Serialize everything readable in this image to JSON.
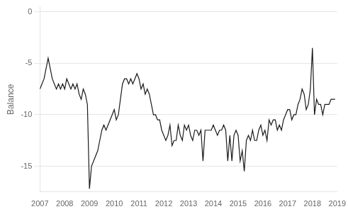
{
  "chart_data": {
    "type": "line",
    "ylabel": "Balance",
    "color": "#1a1a1a",
    "grid": "y",
    "xlim": [
      2007.0,
      2019.0
    ],
    "ylim": [
      -17.5,
      0.5
    ],
    "xticks": [
      2007,
      2008,
      2009,
      2010,
      2011,
      2012,
      2013,
      2014,
      2015,
      2016,
      2017,
      2018,
      2019
    ],
    "yticks": [
      0,
      -5,
      -10,
      -15
    ],
    "x": [
      2007.0,
      2007.083,
      2007.167,
      2007.25,
      2007.333,
      2007.417,
      2007.5,
      2007.583,
      2007.667,
      2007.75,
      2007.833,
      2007.917,
      2008.0,
      2008.083,
      2008.167,
      2008.25,
      2008.333,
      2008.417,
      2008.5,
      2008.583,
      2008.667,
      2008.75,
      2008.833,
      2008.917,
      2009.0,
      2009.083,
      2009.167,
      2009.25,
      2009.333,
      2009.417,
      2009.5,
      2009.583,
      2009.667,
      2009.75,
      2009.833,
      2009.917,
      2010.0,
      2010.083,
      2010.167,
      2010.25,
      2010.333,
      2010.417,
      2010.5,
      2010.583,
      2010.667,
      2010.75,
      2010.833,
      2010.917,
      2011.0,
      2011.083,
      2011.167,
      2011.25,
      2011.333,
      2011.417,
      2011.5,
      2011.583,
      2011.667,
      2011.75,
      2011.833,
      2011.917,
      2012.0,
      2012.083,
      2012.167,
      2012.25,
      2012.333,
      2012.417,
      2012.5,
      2012.583,
      2012.667,
      2012.75,
      2012.833,
      2012.917,
      2013.0,
      2013.083,
      2013.167,
      2013.25,
      2013.333,
      2013.417,
      2013.5,
      2013.583,
      2013.667,
      2013.75,
      2013.833,
      2013.917,
      2014.0,
      2014.083,
      2014.167,
      2014.25,
      2014.333,
      2014.417,
      2014.5,
      2014.583,
      2014.667,
      2014.75,
      2014.833,
      2014.917,
      2015.0,
      2015.083,
      2015.167,
      2015.25,
      2015.333,
      2015.417,
      2015.5,
      2015.583,
      2015.667,
      2015.75,
      2015.833,
      2015.917,
      2016.0,
      2016.083,
      2016.167,
      2016.25,
      2016.333,
      2016.417,
      2016.5,
      2016.583,
      2016.667,
      2016.75,
      2016.833,
      2016.917,
      2017.0,
      2017.083,
      2017.167,
      2017.25,
      2017.333,
      2017.417,
      2017.5,
      2017.583,
      2017.667,
      2017.75,
      2017.833,
      2017.917,
      2018.0,
      2018.083,
      2018.167,
      2018.25,
      2018.333,
      2018.417,
      2018.5,
      2018.583,
      2018.667,
      2018.75,
      2018.833,
      2018.917
    ],
    "values": [
      -7.5,
      -7.0,
      -6.5,
      -5.5,
      -4.5,
      -5.5,
      -6.5,
      -7.0,
      -7.5,
      -7.0,
      -7.5,
      -7.0,
      -7.5,
      -6.5,
      -7.0,
      -7.5,
      -7.0,
      -7.5,
      -7.0,
      -8.0,
      -8.5,
      -7.5,
      -8.0,
      -9.0,
      -17.2,
      -15.0,
      -14.5,
      -14.0,
      -13.5,
      -12.5,
      -11.5,
      -11.0,
      -11.5,
      -11.0,
      -10.5,
      -10.0,
      -9.5,
      -10.5,
      -10.0,
      -8.5,
      -7.0,
      -6.5,
      -6.5,
      -7.0,
      -6.5,
      -7.0,
      -6.5,
      -6.0,
      -6.5,
      -7.5,
      -7.0,
      -8.0,
      -7.5,
      -8.0,
      -9.0,
      -10.0,
      -10.0,
      -10.5,
      -10.5,
      -11.5,
      -12.0,
      -12.5,
      -12.0,
      -11.0,
      -13.0,
      -12.5,
      -12.5,
      -11.0,
      -12.0,
      -12.5,
      -11.0,
      -11.5,
      -11.0,
      -12.0,
      -12.5,
      -11.5,
      -11.5,
      -12.0,
      -11.5,
      -14.5,
      -11.5,
      -11.5,
      -11.5,
      -11.5,
      -11.0,
      -11.5,
      -12.0,
      -11.5,
      -11.5,
      -11.0,
      -11.5,
      -14.5,
      -12.0,
      -14.5,
      -12.0,
      -11.5,
      -12.0,
      -14.5,
      -13.5,
      -15.5,
      -12.5,
      -12.0,
      -12.5,
      -11.5,
      -12.5,
      -12.5,
      -11.5,
      -11.0,
      -12.0,
      -11.5,
      -12.5,
      -10.5,
      -11.0,
      -10.5,
      -10.5,
      -11.5,
      -11.0,
      -11.5,
      -10.5,
      -10.0,
      -9.5,
      -9.5,
      -10.5,
      -10.0,
      -10.0,
      -9.0,
      -8.5,
      -7.5,
      -8.0,
      -9.5,
      -9.0,
      -7.5,
      -3.5,
      -10.0,
      -8.5,
      -9.0,
      -9.0,
      -10.0,
      -9.0,
      -9.0,
      -9.0,
      -8.5,
      -8.5,
      -8.5
    ]
  }
}
